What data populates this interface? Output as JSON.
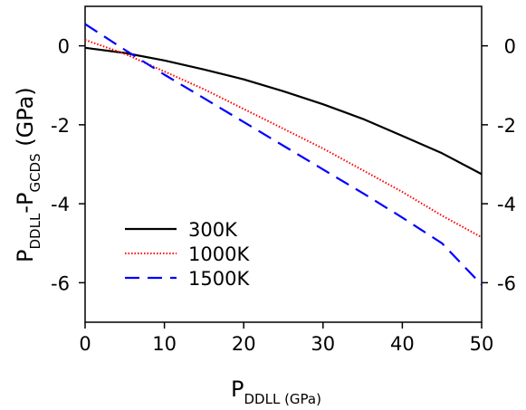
{
  "chart_data": {
    "type": "line",
    "xlabel": {
      "main": "P",
      "sub": "DDLL (GPa)"
    },
    "ylabel": {
      "main1": "P",
      "sub1": "DDLL",
      "mid": "-P",
      "sub2": "GCDS",
      "tail": " (GPa)"
    },
    "xlim": [
      0,
      50
    ],
    "ylim": [
      -7,
      1
    ],
    "xticks": [
      0,
      10,
      20,
      30,
      40,
      50
    ],
    "yticks": [
      0,
      -2,
      -4,
      -6
    ],
    "ytick_labels": [
      "0",
      "-2",
      "-4",
      "-6"
    ],
    "right_axis_ticks": true,
    "grid": false,
    "legend_position": "lower-left",
    "series": [
      {
        "name": "300K",
        "color": "#000000",
        "style": "solid",
        "x": [
          0,
          5,
          10,
          15,
          20,
          25,
          30,
          35,
          40,
          45,
          50
        ],
        "y": [
          -0.05,
          -0.18,
          -0.37,
          -0.6,
          -0.85,
          -1.15,
          -1.48,
          -1.85,
          -2.28,
          -2.72,
          -3.25
        ]
      },
      {
        "name": "1000K",
        "color": "#ff0000",
        "style": "dotted",
        "x": [
          0,
          5,
          10,
          15,
          20,
          25,
          30,
          35,
          40,
          45,
          50
        ],
        "y": [
          0.15,
          -0.2,
          -0.65,
          -1.1,
          -1.6,
          -2.1,
          -2.6,
          -3.15,
          -3.7,
          -4.3,
          -4.85
        ]
      },
      {
        "name": "1500K",
        "color": "#0000ff",
        "style": "dashed",
        "x": [
          0,
          5,
          10,
          15,
          20,
          25,
          30,
          35,
          40,
          45,
          50
        ],
        "y": [
          0.55,
          -0.1,
          -0.73,
          -1.33,
          -1.93,
          -2.53,
          -3.13,
          -3.73,
          -4.35,
          -5.0,
          -6.05
        ]
      }
    ]
  }
}
